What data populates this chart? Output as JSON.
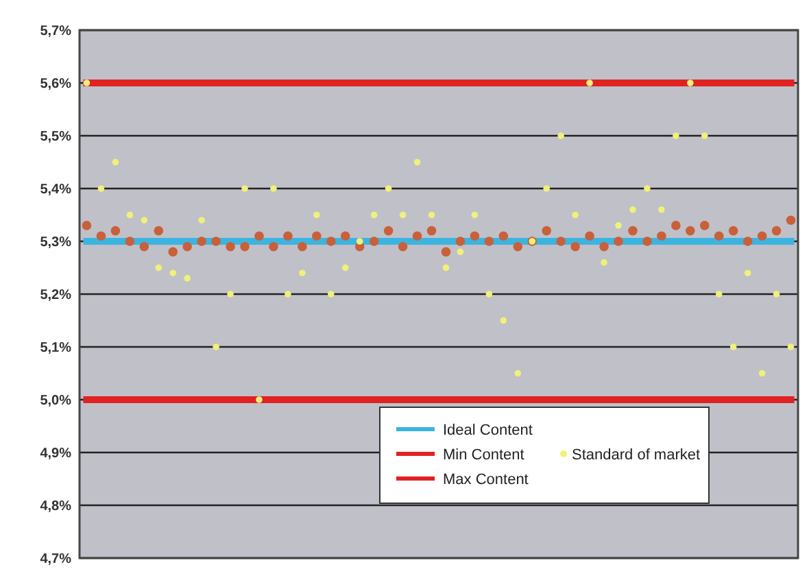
{
  "chart_data": {
    "type": "scatter",
    "categories": [
      null,
      null,
      null,
      null,
      null,
      null,
      null,
      null,
      null,
      null,
      null,
      null,
      null,
      null,
      null,
      null,
      null,
      null,
      null,
      null,
      null,
      null,
      null,
      null,
      null,
      null,
      null,
      null,
      null,
      null,
      null,
      null,
      null,
      null,
      null,
      null,
      null,
      null,
      null,
      null,
      null,
      null,
      null,
      null,
      null,
      null,
      null,
      null,
      null,
      null
    ],
    "series": [
      {
        "name": "Ideal Content",
        "type": "line",
        "marker": "none",
        "color": "#3cb4e0",
        "values": [
          5.3,
          5.3,
          5.3,
          5.3,
          5.3,
          5.3,
          5.3,
          5.3,
          5.3,
          5.3,
          5.3,
          5.3,
          5.3,
          5.3,
          5.3,
          5.3,
          5.3,
          5.3,
          5.3,
          5.3,
          5.3,
          5.3,
          5.3,
          5.3,
          5.3,
          5.3,
          5.3,
          5.3,
          5.3,
          5.3,
          5.3,
          5.3,
          5.3,
          5.3,
          5.3,
          5.3,
          5.3,
          5.3,
          5.3,
          5.3,
          5.3,
          5.3,
          5.3,
          5.3,
          5.3,
          5.3,
          5.3,
          5.3,
          5.3,
          5.3
        ]
      },
      {
        "name": "Min Content",
        "type": "line",
        "marker": "none",
        "color": "#e02222",
        "values": [
          5.0,
          5.0,
          5.0,
          5.0,
          5.0,
          5.0,
          5.0,
          5.0,
          5.0,
          5.0,
          5.0,
          5.0,
          5.0,
          5.0,
          5.0,
          5.0,
          5.0,
          5.0,
          5.0,
          5.0,
          5.0,
          5.0,
          5.0,
          5.0,
          5.0,
          5.0,
          5.0,
          5.0,
          5.0,
          5.0,
          5.0,
          5.0,
          5.0,
          5.0,
          5.0,
          5.0,
          5.0,
          5.0,
          5.0,
          5.0,
          5.0,
          5.0,
          5.0,
          5.0,
          5.0,
          5.0,
          5.0,
          5.0,
          5.0,
          5.0
        ]
      },
      {
        "name": "Max Content",
        "type": "line",
        "marker": "none",
        "color": "#e02222",
        "values": [
          5.6,
          5.6,
          5.6,
          5.6,
          5.6,
          5.6,
          5.6,
          5.6,
          5.6,
          5.6,
          5.6,
          5.6,
          5.6,
          5.6,
          5.6,
          5.6,
          5.6,
          5.6,
          5.6,
          5.6,
          5.6,
          5.6,
          5.6,
          5.6,
          5.6,
          5.6,
          5.6,
          5.6,
          5.6,
          5.6,
          5.6,
          5.6,
          5.6,
          5.6,
          5.6,
          5.6,
          5.6,
          5.6,
          5.6,
          5.6,
          5.6,
          5.6,
          5.6,
          5.6,
          5.6,
          5.6,
          5.6,
          5.6,
          5.6,
          5.6
        ]
      },
      {
        "color": "#c8603a",
        "values": [
          5.33,
          5.31,
          5.32,
          5.3,
          5.29,
          5.32,
          5.28,
          5.29,
          5.3,
          5.3,
          5.29,
          5.29,
          5.31,
          5.29,
          5.31,
          5.29,
          5.31,
          5.3,
          5.31,
          5.29,
          5.3,
          5.32,
          5.29,
          5.31,
          5.32,
          5.28,
          5.3,
          5.31,
          5.3,
          5.31,
          5.29,
          5.3,
          5.32,
          5.3,
          5.29,
          5.31,
          5.29,
          5.3,
          5.32,
          5.3,
          5.31,
          5.33,
          5.32,
          5.33,
          5.31,
          5.32,
          5.3,
          5.31,
          5.32,
          5.34
        ]
      },
      {
        "name": "Standard of market",
        "color": "#f0f07a",
        "values": [
          5.6,
          5.4,
          5.45,
          5.35,
          5.34,
          5.25,
          5.24,
          5.23,
          5.34,
          5.1,
          5.2,
          5.4,
          5.0,
          5.4,
          5.2,
          5.24,
          5.35,
          5.2,
          5.25,
          5.3,
          5.35,
          5.4,
          5.35,
          5.45,
          5.35,
          5.25,
          5.28,
          5.35,
          5.2,
          5.15,
          5.05,
          5.3,
          5.4,
          5.5,
          5.35,
          5.6,
          5.26,
          5.33,
          5.36,
          5.4,
          5.36,
          5.5,
          5.6,
          5.5,
          5.2,
          5.1,
          5.24,
          5.05,
          5.2,
          5.1
        ]
      }
    ],
    "ylim": [
      4.7,
      5.7
    ],
    "yticks": [
      {
        "value": 4.7,
        "label": "4,7%"
      },
      {
        "value": 4.8,
        "label": "4,8%"
      },
      {
        "value": 4.9,
        "label": "4,9%"
      },
      {
        "value": 5.0,
        "label": "5,0%"
      },
      {
        "value": 5.1,
        "label": "5,1%"
      },
      {
        "value": 5.2,
        "label": "5,2%"
      },
      {
        "value": 5.3,
        "label": "5,3%"
      },
      {
        "value": 5.4,
        "label": "5,4%"
      },
      {
        "value": 5.5,
        "label": "5,5%"
      },
      {
        "value": 5.6,
        "label": "5,6%"
      },
      {
        "value": 5.7,
        "label": "5,7%"
      }
    ],
    "grid": "y",
    "legend": "bottom right",
    "marker": "circle"
  }
}
